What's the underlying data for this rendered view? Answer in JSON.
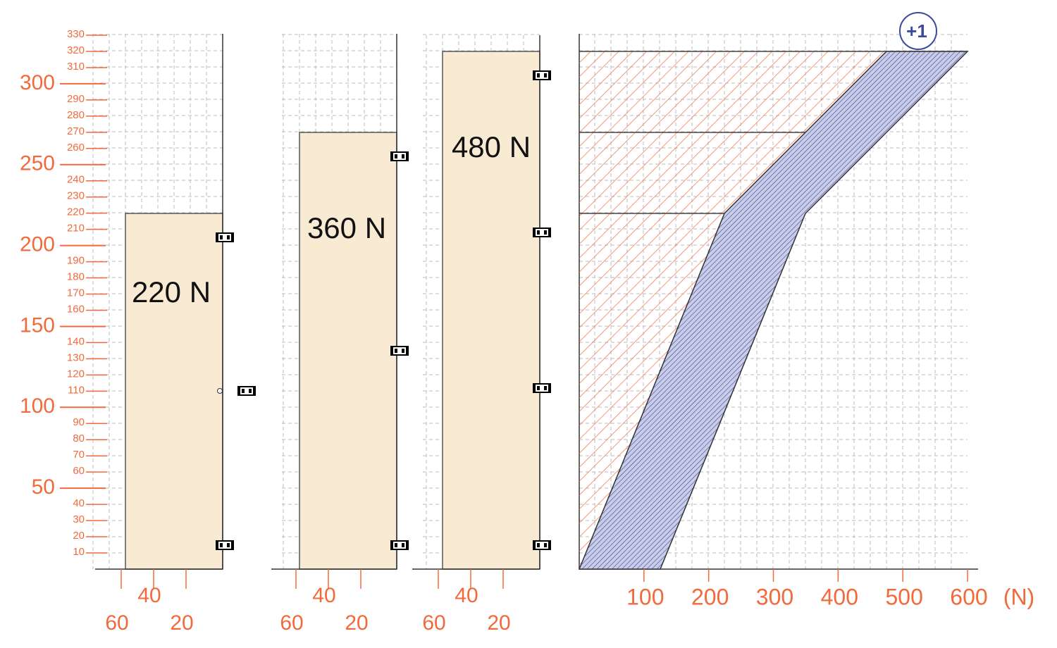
{
  "height_axis": {
    "major": [
      50,
      100,
      150,
      200,
      250,
      300
    ],
    "minor": [
      10,
      20,
      30,
      40,
      60,
      70,
      80,
      90,
      110,
      120,
      130,
      140,
      160,
      170,
      180,
      190,
      210,
      220,
      230,
      240,
      260,
      270,
      280,
      290,
      310,
      320,
      330
    ]
  },
  "panels": [
    {
      "label": "220 N",
      "depth_ticks": [
        60,
        40,
        20
      ]
    },
    {
      "label": "360 N",
      "depth_ticks": [
        60,
        40,
        20
      ]
    },
    {
      "label": "480 N",
      "depth_ticks": [
        60,
        40,
        20
      ]
    }
  ],
  "force_axis": {
    "ticks": [
      100,
      200,
      300,
      400,
      500,
      600
    ],
    "unit": "(N)"
  },
  "badge": "+1"
}
